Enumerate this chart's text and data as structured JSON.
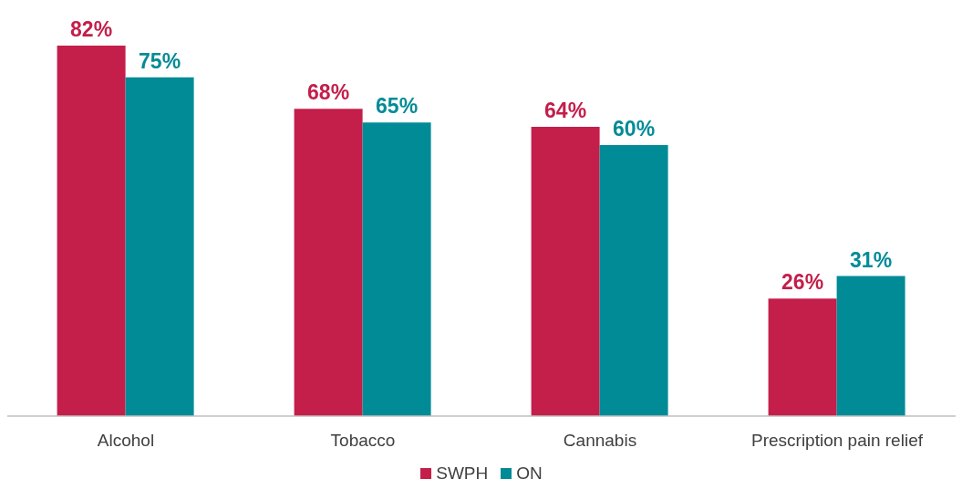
{
  "chart_data": {
    "type": "bar",
    "categories": [
      "Alcohol",
      "Tobacco",
      "Cannabis",
      "Prescription pain relief"
    ],
    "series": [
      {
        "name": "SWPH",
        "color": "#c41e4a",
        "values": [
          82,
          68,
          64,
          26
        ],
        "value_labels": [
          "82%",
          "68%",
          "64%",
          "26%"
        ]
      },
      {
        "name": "ON",
        "color": "#008b96",
        "values": [
          75,
          65,
          60,
          31
        ],
        "value_labels": [
          "75%",
          "65%",
          "60%",
          "31%"
        ]
      }
    ],
    "legend": "bottom"
  }
}
